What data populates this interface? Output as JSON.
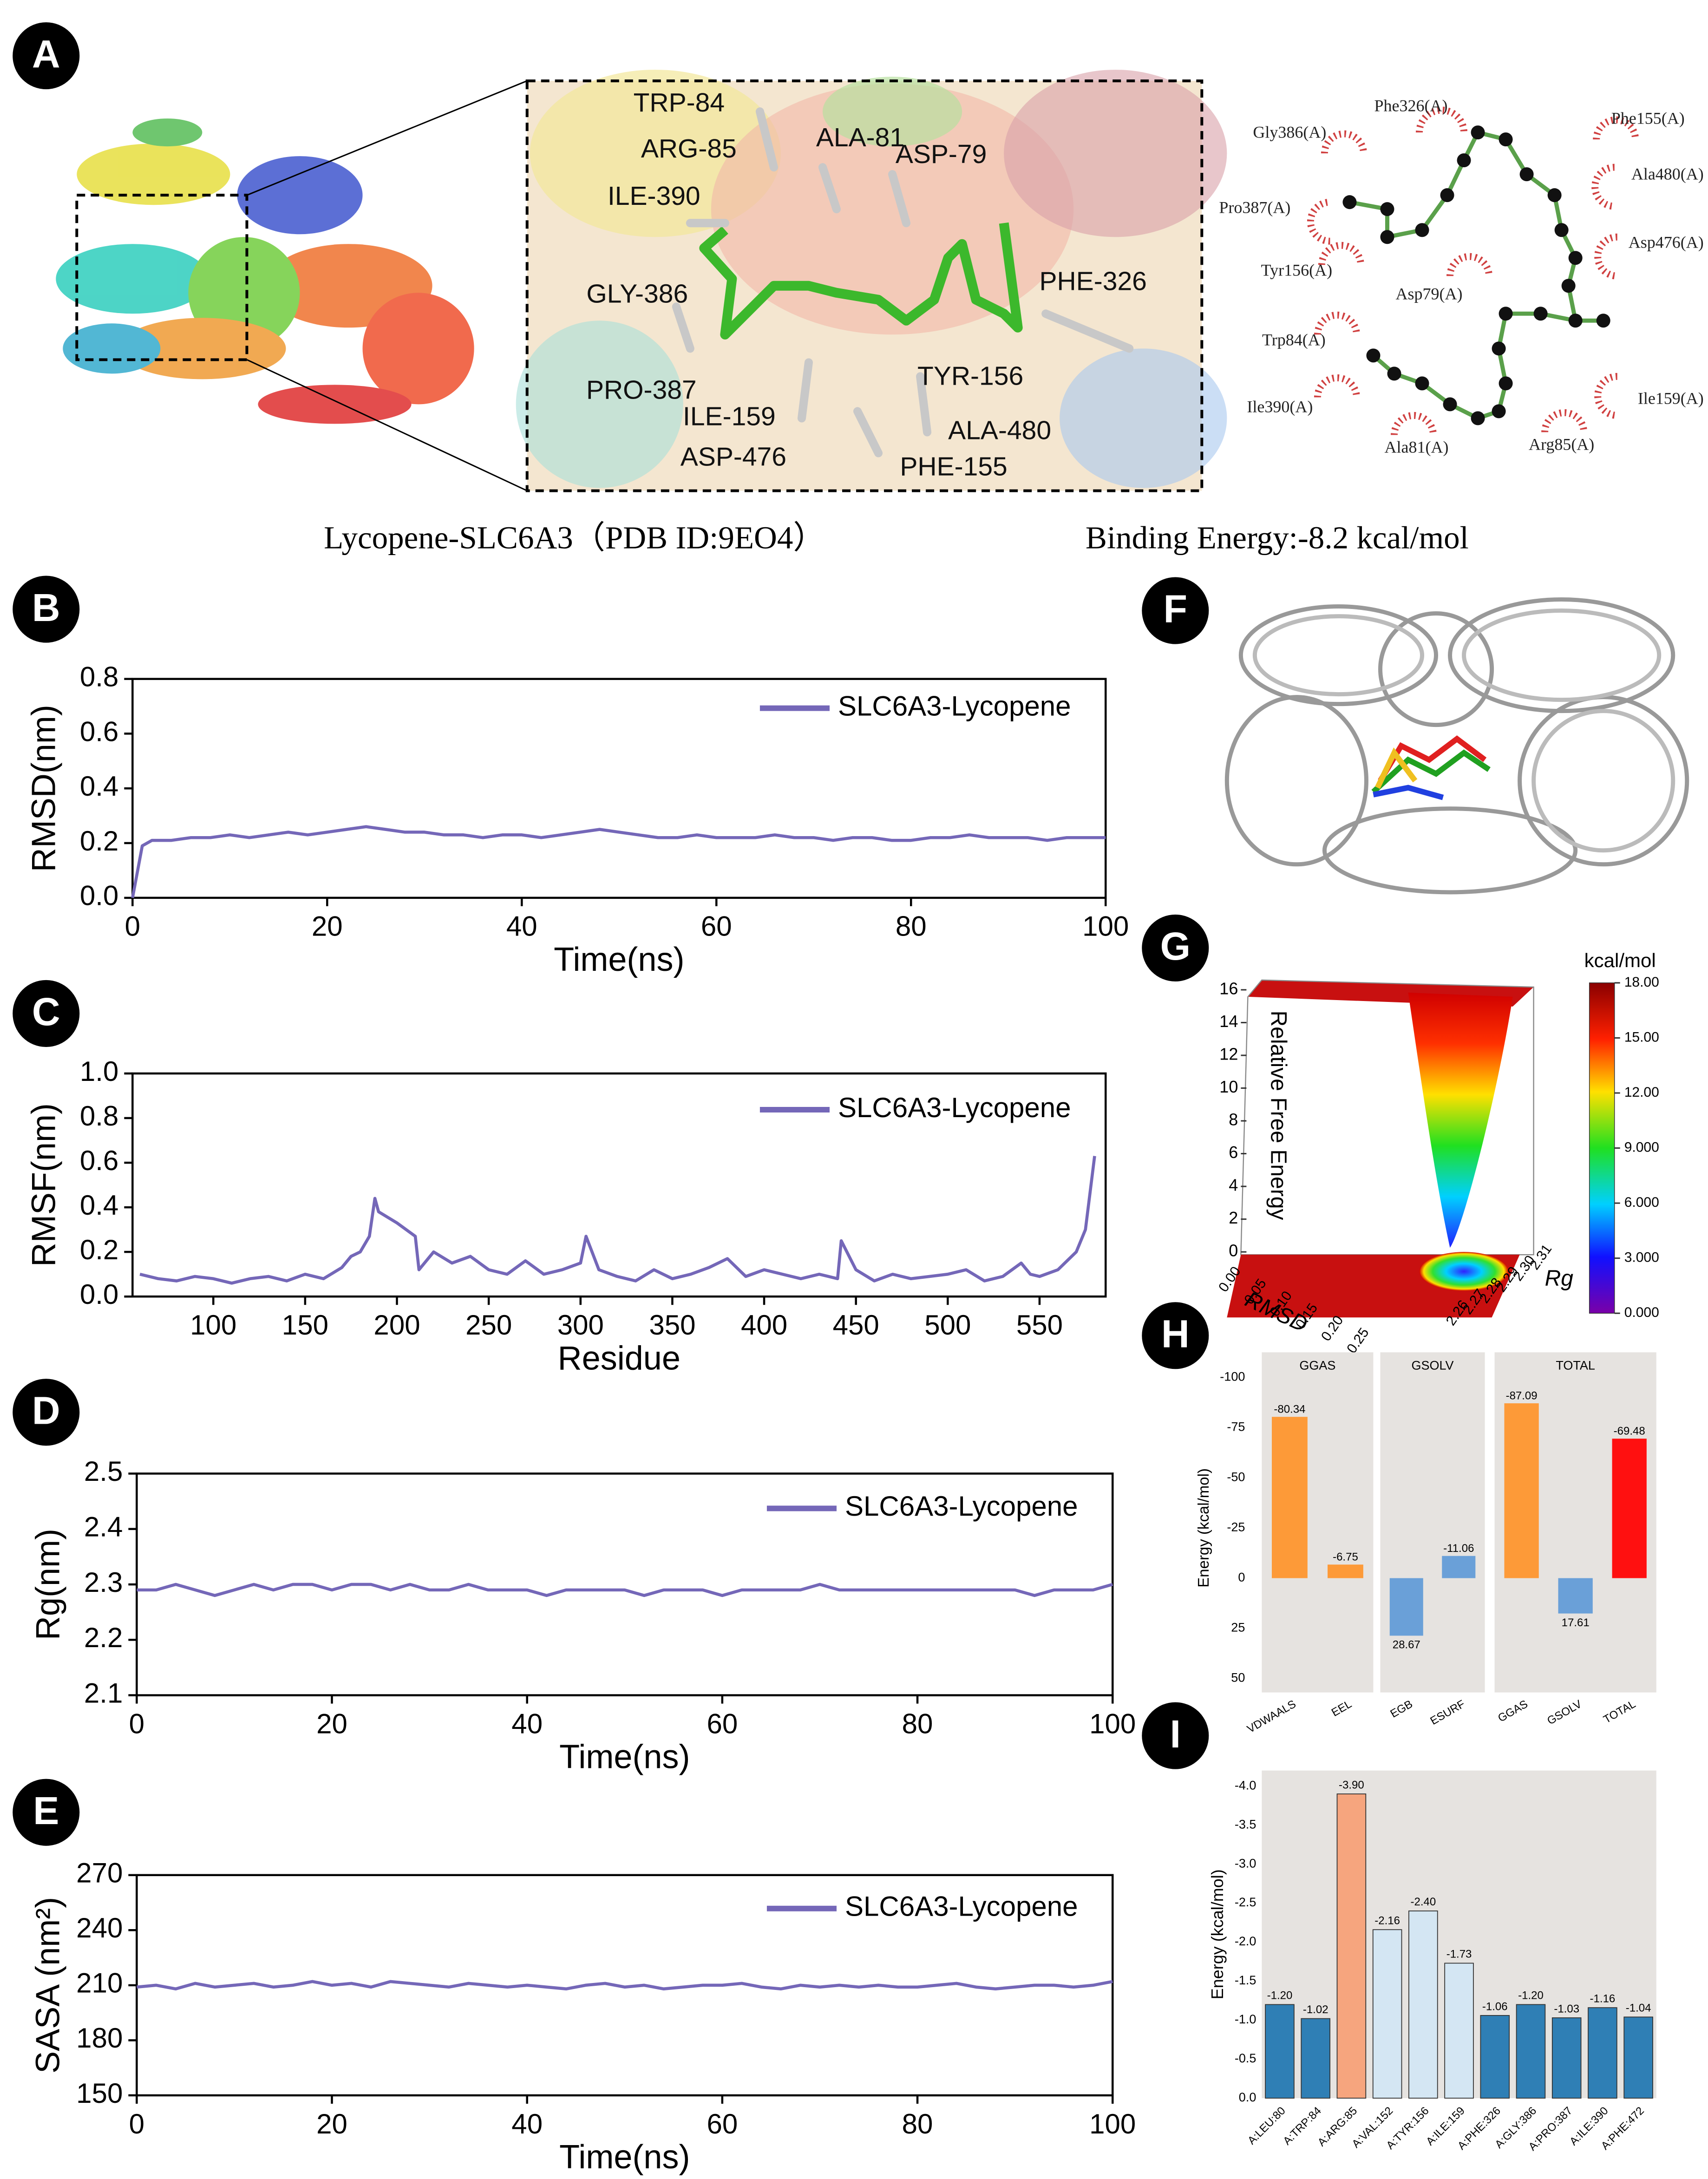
{
  "panel_labels": [
    "A",
    "B",
    "C",
    "D",
    "E",
    "F",
    "G",
    "H",
    "I"
  ],
  "panel_a": {
    "residues": [
      "TRP-84",
      "ARG-85",
      "ALA-81",
      "ASP-79",
      "ILE-390",
      "GLY-386",
      "PHE-326",
      "PRO-387",
      "TYR-156",
      "ILE-159",
      "ALA-480",
      "ASP-476",
      "PHE-155"
    ],
    "ligplot_residues": [
      "Phe326(A)",
      "Gly386(A)",
      "Phe155(A)",
      "Ala480(A)",
      "Pro387(A)",
      "Asp476(A)",
      "Tyr156(A)",
      "Asp79(A)",
      "Trp84(A)",
      "Ile159(A)",
      "Ile390(A)",
      "Ala81(A)",
      "Arg85(A)"
    ],
    "caption": "Lycopene-SLC6A3（PDB ID:9EO4）",
    "binding_energy": "Binding Energy:-8.2 kcal/mol"
  },
  "chart_data": [
    {
      "type": "line",
      "xlabel": "Time(ns)",
      "ylabel": "RMSD(nm)",
      "legend": "upper right",
      "xlim": [
        0,
        100
      ],
      "xticks": [
        0,
        20,
        40,
        60,
        80,
        100
      ],
      "ylim": [
        0,
        0.8
      ],
      "yticks": [
        {
          "value": 0,
          "label": "0.0"
        },
        0.2,
        0.4,
        0.6,
        0.8
      ],
      "series": [
        {
          "name": "SLC6A3-Lycopene",
          "color": "#7467b8",
          "x": [
            0,
            1,
            2,
            4,
            6,
            8,
            10,
            12,
            14,
            16,
            18,
            20,
            22,
            24,
            26,
            28,
            30,
            32,
            34,
            36,
            38,
            40,
            42,
            44,
            46,
            48,
            50,
            52,
            54,
            56,
            58,
            60,
            62,
            64,
            66,
            68,
            70,
            72,
            74,
            76,
            78,
            80,
            82,
            84,
            86,
            88,
            90,
            92,
            94,
            96,
            98,
            100
          ],
          "values": [
            0.0,
            0.19,
            0.21,
            0.21,
            0.22,
            0.22,
            0.23,
            0.22,
            0.23,
            0.24,
            0.23,
            0.24,
            0.25,
            0.26,
            0.25,
            0.24,
            0.24,
            0.23,
            0.23,
            0.22,
            0.23,
            0.23,
            0.22,
            0.23,
            0.24,
            0.25,
            0.24,
            0.23,
            0.22,
            0.22,
            0.23,
            0.22,
            0.22,
            0.22,
            0.23,
            0.22,
            0.22,
            0.21,
            0.22,
            0.22,
            0.21,
            0.21,
            0.22,
            0.22,
            0.23,
            0.22,
            0.22,
            0.22,
            0.21,
            0.22,
            0.22,
            0.22
          ]
        }
      ]
    },
    {
      "type": "line",
      "xlabel": "Residue",
      "ylabel": "RMSF(nm)",
      "legend": "upper right",
      "xlim": [
        56,
        586
      ],
      "xticks": [
        100,
        150,
        200,
        250,
        300,
        350,
        400,
        450,
        500,
        550
      ],
      "ylim": [
        0,
        1
      ],
      "yticks": [
        {
          "value": 0,
          "label": "0.0"
        },
        0.2,
        0.4,
        0.6,
        0.8,
        {
          "value": 1,
          "label": "1.0"
        }
      ],
      "series": [
        {
          "name": "SLC6A3-Lycopene",
          "color": "#7467b8",
          "x": [
            60,
            70,
            80,
            90,
            100,
            110,
            120,
            130,
            140,
            150,
            160,
            170,
            175,
            180,
            185,
            188,
            190,
            200,
            210,
            212,
            220,
            230,
            240,
            250,
            260,
            270,
            280,
            290,
            300,
            303,
            310,
            320,
            330,
            340,
            350,
            360,
            370,
            380,
            390,
            400,
            410,
            420,
            430,
            440,
            442,
            450,
            460,
            470,
            480,
            490,
            500,
            510,
            520,
            530,
            540,
            545,
            550,
            560,
            570,
            575,
            580
          ],
          "values": [
            0.1,
            0.08,
            0.07,
            0.09,
            0.08,
            0.06,
            0.08,
            0.09,
            0.07,
            0.1,
            0.08,
            0.13,
            0.18,
            0.2,
            0.27,
            0.44,
            0.38,
            0.33,
            0.27,
            0.12,
            0.2,
            0.15,
            0.18,
            0.12,
            0.1,
            0.16,
            0.1,
            0.12,
            0.15,
            0.27,
            0.12,
            0.09,
            0.07,
            0.12,
            0.08,
            0.1,
            0.13,
            0.17,
            0.09,
            0.12,
            0.1,
            0.08,
            0.1,
            0.08,
            0.25,
            0.12,
            0.07,
            0.1,
            0.08,
            0.09,
            0.1,
            0.12,
            0.07,
            0.09,
            0.15,
            0.1,
            0.09,
            0.12,
            0.2,
            0.3,
            0.63
          ]
        }
      ]
    },
    {
      "type": "line",
      "xlabel": "Time(ns)",
      "ylabel": "Rg(nm)",
      "legend": "upper right",
      "xlim": [
        0,
        100
      ],
      "xticks": [
        0,
        20,
        40,
        60,
        80,
        100
      ],
      "ylim": [
        2.1,
        2.5
      ],
      "yticks": [
        2.1,
        2.2,
        2.3,
        2.4,
        2.5
      ],
      "series": [
        {
          "name": "SLC6A3-Lycopene",
          "color": "#7467b8",
          "x": [
            0,
            2,
            4,
            6,
            8,
            10,
            12,
            14,
            16,
            18,
            20,
            22,
            24,
            26,
            28,
            30,
            32,
            34,
            36,
            38,
            40,
            42,
            44,
            46,
            48,
            50,
            52,
            54,
            56,
            58,
            60,
            62,
            64,
            66,
            68,
            70,
            72,
            74,
            76,
            78,
            80,
            82,
            84,
            86,
            88,
            90,
            92,
            94,
            96,
            98,
            100
          ],
          "values": [
            2.29,
            2.29,
            2.3,
            2.29,
            2.28,
            2.29,
            2.3,
            2.29,
            2.3,
            2.3,
            2.29,
            2.3,
            2.3,
            2.29,
            2.3,
            2.29,
            2.29,
            2.3,
            2.29,
            2.29,
            2.29,
            2.28,
            2.29,
            2.29,
            2.29,
            2.29,
            2.28,
            2.29,
            2.29,
            2.29,
            2.28,
            2.29,
            2.29,
            2.29,
            2.29,
            2.3,
            2.29,
            2.29,
            2.29,
            2.29,
            2.29,
            2.29,
            2.29,
            2.29,
            2.29,
            2.29,
            2.28,
            2.29,
            2.29,
            2.29,
            2.3
          ]
        }
      ]
    },
    {
      "type": "line",
      "xlabel": "Time(ns)",
      "ylabel": "SASA (nm²)",
      "legend": "upper right",
      "xlim": [
        0,
        100
      ],
      "xticks": [
        0,
        20,
        40,
        60,
        80,
        100
      ],
      "ylim": [
        150,
        270
      ],
      "yticks": [
        150,
        180,
        210,
        240,
        270
      ],
      "series": [
        {
          "name": "SLC6A3-Lycopene",
          "color": "#7467b8",
          "x": [
            0,
            2,
            4,
            6,
            8,
            10,
            12,
            14,
            16,
            18,
            20,
            22,
            24,
            26,
            28,
            30,
            32,
            34,
            36,
            38,
            40,
            42,
            44,
            46,
            48,
            50,
            52,
            54,
            56,
            58,
            60,
            62,
            64,
            66,
            68,
            70,
            72,
            74,
            76,
            78,
            80,
            82,
            84,
            86,
            88,
            90,
            92,
            94,
            96,
            98,
            100
          ],
          "values": [
            209,
            210,
            208,
            211,
            209,
            210,
            211,
            209,
            210,
            212,
            210,
            211,
            209,
            212,
            211,
            210,
            209,
            211,
            210,
            209,
            210,
            209,
            208,
            210,
            211,
            209,
            210,
            208,
            209,
            210,
            210,
            211,
            209,
            208,
            210,
            209,
            210,
            209,
            210,
            209,
            209,
            210,
            211,
            209,
            208,
            209,
            210,
            210,
            209,
            210,
            212
          ]
        }
      ]
    },
    {
      "type": "surface",
      "zlabel": "Relative Free Energy",
      "xlabel": "RMSD",
      "ylabel": "Rg",
      "zlim": [
        0,
        16
      ],
      "zticks": [
        0,
        2,
        4,
        6,
        8,
        10,
        12,
        14,
        16
      ],
      "xlim": [
        0,
        0.25
      ],
      "xticks": [
        {
          "value": 0,
          "label": "0.00"
        },
        0.05,
        {
          "value": 0.1,
          "label": "0.10"
        },
        0.15,
        {
          "value": 0.2,
          "label": "0.20"
        },
        0.25
      ],
      "ylim": [
        2.26,
        2.31
      ],
      "yticks": [
        2.26,
        2.27,
        2.28,
        2.29,
        {
          "value": 2.3,
          "label": "2.30"
        },
        2.31
      ],
      "colorbar_label": "kcal/mol",
      "colorbar_lim": [
        0,
        18
      ],
      "colorbar_ticks": [
        {
          "value": 0,
          "label": "0.000"
        },
        {
          "value": 3,
          "label": "3.000"
        },
        {
          "value": 6,
          "label": "6.000"
        },
        {
          "value": 9,
          "label": "9.000"
        },
        {
          "value": 12,
          "label": "12.00"
        },
        {
          "value": 15,
          "label": "15.00"
        },
        {
          "value": 18,
          "label": "18.00"
        }
      ]
    },
    {
      "type": "faceted_bar",
      "ylabel": "Energy (kcal/mol)",
      "background": "#e6e3e0",
      "ylim": [
        50,
        -100
      ],
      "yticks": [
        -100,
        -75,
        -50,
        -25,
        0,
        25,
        50
      ],
      "facets": [
        {
          "title": "GGAS",
          "categories": [
            "VDWAALS",
            "EEL"
          ],
          "values": [
            -80.34,
            -6.75
          ],
          "colors": [
            "#fd9a38",
            "#fd9a38"
          ]
        },
        {
          "title": "GSOLV",
          "categories": [
            "EGB",
            "ESURF"
          ],
          "values": [
            28.67,
            -11.06
          ],
          "colors": [
            "#6aa0d8",
            "#6aa0d8"
          ]
        },
        {
          "title": "TOTAL",
          "categories": [
            "GGAS",
            "GSOLV",
            "TOTAL"
          ],
          "values": [
            -87.09,
            17.61,
            -69.48
          ],
          "colors": [
            "#fd9a38",
            "#6aa0d8",
            "#ff1010"
          ]
        }
      ]
    },
    {
      "type": "bar",
      "ylabel": "Energy (kcal/mol)",
      "background": "#e6e3e0",
      "ylim": [
        0,
        -4.2
      ],
      "yticks": [
        {
          "value": 0,
          "label": "0.0"
        },
        -0.5,
        {
          "value": -1,
          "label": "-1.0"
        },
        -1.5,
        {
          "value": -2,
          "label": "-2.0"
        },
        -2.5,
        {
          "value": -3,
          "label": "-3.0"
        },
        -3.5,
        {
          "value": -4,
          "label": "-4.0"
        }
      ],
      "categories": [
        "A:LEU:80",
        "A:TRP:84",
        "A:ARG:85",
        "A:VAL:152",
        "A:TYR:156",
        "A:ILE:159",
        "A:PHE:326",
        "A:GLY:386",
        "A:PRO:387",
        "A:ILE:390",
        "A:PHE:472"
      ],
      "values": [
        -1.2,
        -1.02,
        -3.9,
        -2.16,
        -2.4,
        -1.73,
        -1.06,
        -1.2,
        -1.03,
        -1.16,
        -1.04
      ],
      "value_labels": [
        "-1.20",
        "-1.02",
        "-3.90",
        "-2.16",
        "-2.40",
        "-1.73",
        "-1.06",
        "-1.20",
        "-1.03",
        "-1.16",
        "-1.04"
      ],
      "colors": [
        "#2f7fb5",
        "#2f7fb5",
        "#f6a57e",
        "#d4e6f3",
        "#d4e6f3",
        "#d4e6f3",
        "#2f7fb5",
        "#2f7fb5",
        "#2f7fb5",
        "#2f7fb5",
        "#2f7fb5"
      ]
    }
  ]
}
